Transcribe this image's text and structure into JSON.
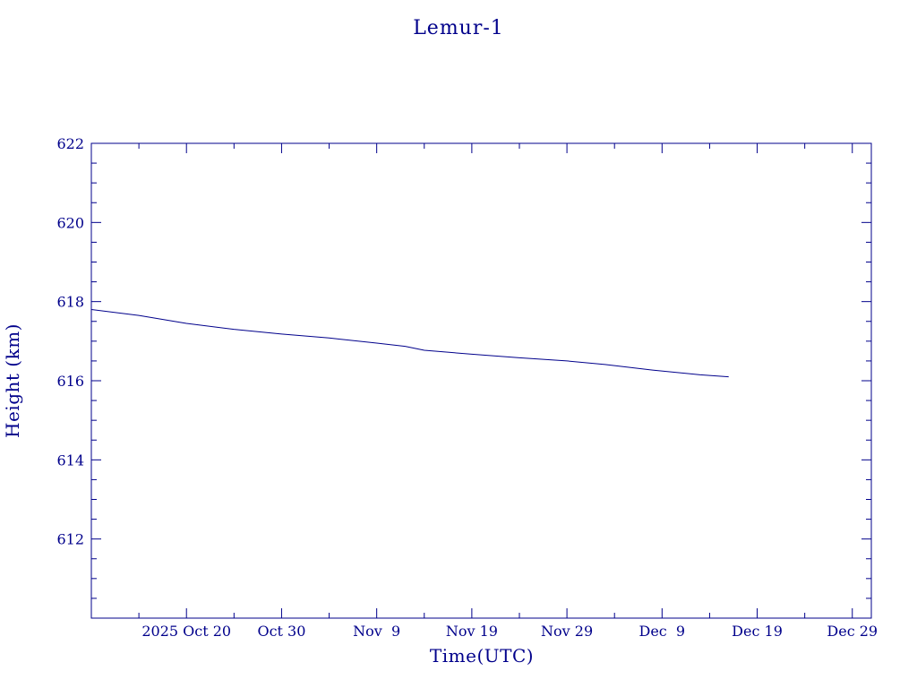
{
  "chart_data": {
    "type": "line",
    "title": "Lemur-1",
    "xlabel": "Time(UTC)",
    "ylabel": "Height (km)",
    "x_range": [
      "2025-10-10",
      "2025-12-31"
    ],
    "xlim": [
      "2025-10-10",
      "2025-12-31"
    ],
    "ylim": [
      610,
      622
    ],
    "y_ticks": [
      612,
      614,
      616,
      618,
      620,
      622
    ],
    "x_ticks": [
      {
        "date": "2025-10-20",
        "label": "2025 Oct 20"
      },
      {
        "date": "2025-10-30",
        "label": "Oct 30"
      },
      {
        "date": "2025-11-09",
        "label": "Nov  9"
      },
      {
        "date": "2025-11-19",
        "label": "Nov 19"
      },
      {
        "date": "2025-11-29",
        "label": "Nov 29"
      },
      {
        "date": "2025-12-09",
        "label": "Dec  9"
      },
      {
        "date": "2025-12-19",
        "label": "Dec 19"
      },
      {
        "date": "2025-12-29",
        "label": "Dec 29"
      }
    ],
    "grid": false,
    "colors": {
      "axis": "#00008B",
      "series": "#00008B"
    },
    "series": [
      {
        "x": [
          "2025-10-10",
          "2025-10-15",
          "2025-10-20",
          "2025-10-25",
          "2025-10-30",
          "2025-11-04",
          "2025-11-09",
          "2025-11-12",
          "2025-11-14",
          "2025-11-19",
          "2025-11-24",
          "2025-11-29",
          "2025-12-03",
          "2025-12-08",
          "2025-12-13",
          "2025-12-16"
        ],
        "y": [
          617.8,
          617.65,
          617.45,
          617.3,
          617.18,
          617.08,
          616.95,
          616.87,
          616.77,
          616.67,
          616.58,
          616.5,
          616.41,
          616.27,
          616.15,
          616.1
        ]
      }
    ]
  }
}
